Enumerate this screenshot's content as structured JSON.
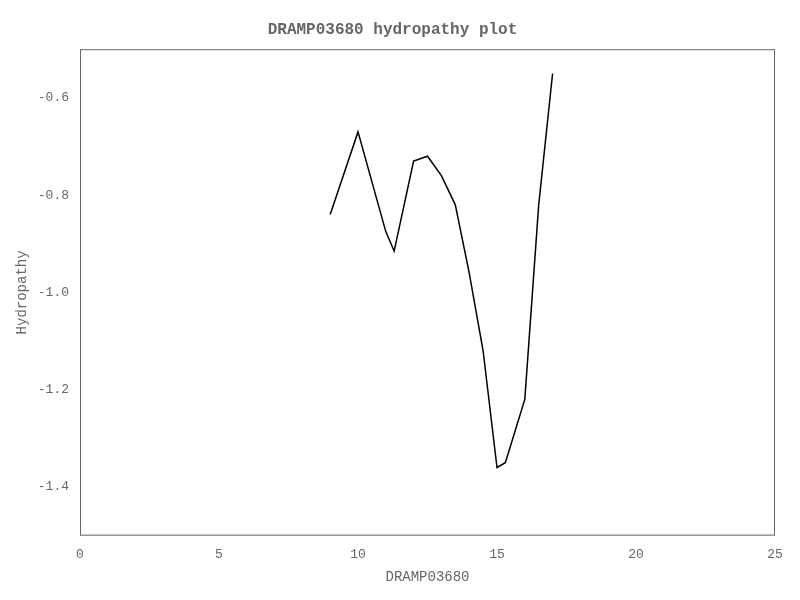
{
  "chart_data": {
    "type": "line",
    "title": "DRAMP03680 hydropathy plot",
    "xlabel": "DRAMP03680",
    "ylabel": "Hydropathy",
    "x": [
      9,
      10,
      11,
      11.3,
      12,
      12.5,
      13,
      13.5,
      14,
      14.5,
      15,
      15.3,
      16,
      16.5,
      17
    ],
    "values": [
      -0.84,
      -0.67,
      -0.875,
      -0.915,
      -0.73,
      -0.72,
      -0.76,
      -0.82,
      -0.96,
      -1.12,
      -1.36,
      -1.35,
      -1.22,
      -0.82,
      -0.55
    ],
    "color": "#000000",
    "xlim": [
      0,
      25
    ],
    "xticks": [
      0,
      5,
      10,
      15,
      20,
      25
    ],
    "ylim": [
      -1.5,
      -0.5
    ],
    "yticks": [
      -1.4,
      -1.2,
      {
        "value": -1.0,
        "label": "-1.0"
      },
      -0.8,
      -0.6
    ],
    "grid": false
  }
}
